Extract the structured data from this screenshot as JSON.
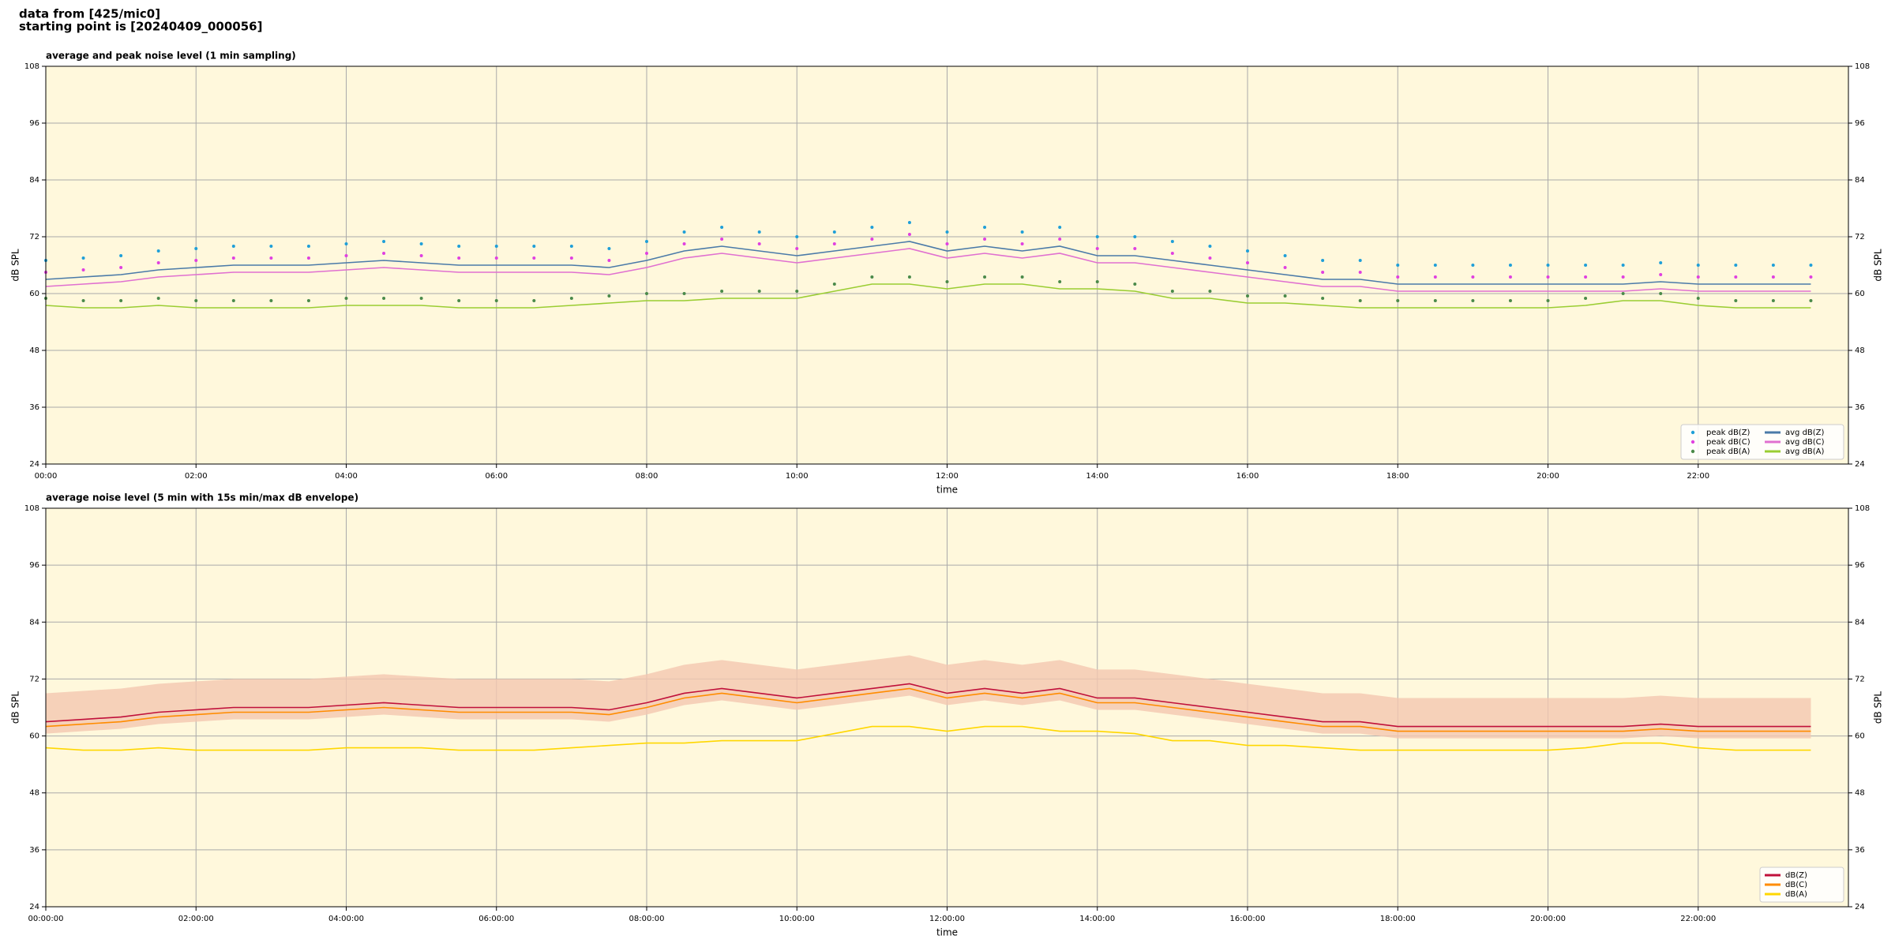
{
  "header": {
    "source": "data from [425/mic0]",
    "start": "starting point is [20240409_000056]"
  },
  "chart_data": [
    {
      "type": "line",
      "title": "average and peak noise level (1 min sampling)",
      "xlabel": "time",
      "ylabel": "dB SPL",
      "background": "#fff8dc",
      "grid": true,
      "legend": "lower right",
      "xlim": [
        0,
        24
      ],
      "xticks": [
        {
          "value": 0,
          "label": "00:00"
        },
        {
          "value": 2,
          "label": "02:00"
        },
        {
          "value": 4,
          "label": "04:00"
        },
        {
          "value": 6,
          "label": "06:00"
        },
        {
          "value": 8,
          "label": "08:00"
        },
        {
          "value": 10,
          "label": "10:00"
        },
        {
          "value": 12,
          "label": "12:00"
        },
        {
          "value": 14,
          "label": "14:00"
        },
        {
          "value": 16,
          "label": "16:00"
        },
        {
          "value": 18,
          "label": "18:00"
        },
        {
          "value": 20,
          "label": "20:00"
        },
        {
          "value": 22,
          "label": "22:00"
        }
      ],
      "ylim": [
        24,
        108
      ],
      "yticks": [
        24,
        36,
        48,
        60,
        72,
        84,
        96,
        108
      ],
      "x": [
        0,
        0.5,
        1,
        1.5,
        2,
        2.5,
        3,
        3.5,
        4,
        4.5,
        5,
        5.5,
        6,
        6.5,
        7,
        7.5,
        8,
        8.5,
        9,
        9.5,
        10,
        10.5,
        11,
        11.5,
        12,
        12.5,
        13,
        13.5,
        14,
        14.5,
        15,
        15.5,
        16,
        16.5,
        17,
        17.5,
        18,
        18.5,
        19,
        19.5,
        20,
        20.5,
        21,
        21.5,
        22,
        22.5,
        23,
        23.5
      ],
      "series": [
        {
          "name": "peak dB(Z)",
          "color": "#1f9fd8",
          "mode": "markers",
          "values": [
            67,
            67.5,
            68,
            69,
            69.5,
            70,
            70,
            70,
            70.5,
            71,
            70.5,
            70,
            70,
            70,
            70,
            69.5,
            71,
            73,
            74,
            73,
            72,
            73,
            74,
            75,
            73,
            74,
            73,
            74,
            72,
            72,
            71,
            70,
            69,
            68,
            67,
            67,
            66,
            66,
            66,
            66,
            66,
            66,
            66,
            66.5,
            66,
            66,
            66,
            66
          ]
        },
        {
          "name": "peak dB(C)",
          "color": "#e040e0",
          "mode": "markers",
          "values": [
            64.5,
            65,
            65.5,
            66.5,
            67,
            67.5,
            67.5,
            67.5,
            68,
            68.5,
            68,
            67.5,
            67.5,
            67.5,
            67.5,
            67,
            68.5,
            70.5,
            71.5,
            70.5,
            69.5,
            70.5,
            71.5,
            72.5,
            70.5,
            71.5,
            70.5,
            71.5,
            69.5,
            69.5,
            68.5,
            67.5,
            66.5,
            65.5,
            64.5,
            64.5,
            63.5,
            63.5,
            63.5,
            63.5,
            63.5,
            63.5,
            63.5,
            64,
            63.5,
            63.5,
            63.5,
            63.5
          ]
        },
        {
          "name": "peak dB(A)",
          "color": "#4a8a4a",
          "mode": "markers",
          "values": [
            59,
            58.5,
            58.5,
            59,
            58.5,
            58.5,
            58.5,
            58.5,
            59,
            59,
            59,
            58.5,
            58.5,
            58.5,
            59,
            59.5,
            60,
            60,
            60.5,
            60.5,
            60.5,
            62,
            63.5,
            63.5,
            62.5,
            63.5,
            63.5,
            62.5,
            62.5,
            62,
            60.5,
            60.5,
            59.5,
            59.5,
            59,
            58.5,
            58.5,
            58.5,
            58.5,
            58.5,
            58.5,
            59,
            60,
            60,
            59,
            58.5,
            58.5,
            58.5
          ]
        },
        {
          "name": "avg dB(Z)",
          "color": "#4a7aa8",
          "mode": "lines",
          "values": [
            63,
            63.5,
            64,
            65,
            65.5,
            66,
            66,
            66,
            66.5,
            67,
            66.5,
            66,
            66,
            66,
            66,
            65.5,
            67,
            69,
            70,
            69,
            68,
            69,
            70,
            71,
            69,
            70,
            69,
            70,
            68,
            68,
            67,
            66,
            65,
            64,
            63,
            63,
            62,
            62,
            62,
            62,
            62,
            62,
            62,
            62.5,
            62,
            62,
            62,
            62
          ]
        },
        {
          "name": "avg dB(C)",
          "color": "#e070d0",
          "mode": "lines",
          "values": [
            61.5,
            62,
            62.5,
            63.5,
            64,
            64.5,
            64.5,
            64.5,
            65,
            65.5,
            65,
            64.5,
            64.5,
            64.5,
            64.5,
            64,
            65.5,
            67.5,
            68.5,
            67.5,
            66.5,
            67.5,
            68.5,
            69.5,
            67.5,
            68.5,
            67.5,
            68.5,
            66.5,
            66.5,
            65.5,
            64.5,
            63.5,
            62.5,
            61.5,
            61.5,
            60.5,
            60.5,
            60.5,
            60.5,
            60.5,
            60.5,
            60.5,
            61,
            60.5,
            60.5,
            60.5,
            60.5
          ]
        },
        {
          "name": "avg dB(A)",
          "color": "#9acd32",
          "mode": "lines",
          "values": [
            57.5,
            57,
            57,
            57.5,
            57,
            57,
            57,
            57,
            57.5,
            57.5,
            57.5,
            57,
            57,
            57,
            57.5,
            58,
            58.5,
            58.5,
            59,
            59,
            59,
            60.5,
            62,
            62,
            61,
            62,
            62,
            61,
            61,
            60.5,
            59,
            59,
            58,
            58,
            57.5,
            57,
            57,
            57,
            57,
            57,
            57,
            57.5,
            58.5,
            58.5,
            57.5,
            57,
            57,
            57
          ]
        }
      ]
    },
    {
      "type": "line",
      "title": "average noise level (5 min with 15s min/max dB envelope)",
      "xlabel": "time",
      "ylabel": "dB SPL",
      "background": "#fff8dc",
      "grid": true,
      "legend": "lower right",
      "xlim": [
        0,
        24
      ],
      "xticks": [
        {
          "value": 0,
          "label": "00:00:00"
        },
        {
          "value": 2,
          "label": "02:00:00"
        },
        {
          "value": 4,
          "label": "04:00:00"
        },
        {
          "value": 6,
          "label": "06:00:00"
        },
        {
          "value": 8,
          "label": "08:00:00"
        },
        {
          "value": 10,
          "label": "10:00:00"
        },
        {
          "value": 12,
          "label": "12:00:00"
        },
        {
          "value": 14,
          "label": "14:00:00"
        },
        {
          "value": 16,
          "label": "16:00:00"
        },
        {
          "value": 18,
          "label": "18:00:00"
        },
        {
          "value": 20,
          "label": "20:00:00"
        },
        {
          "value": 22,
          "label": "22:00:00"
        }
      ],
      "ylim": [
        24,
        108
      ],
      "yticks": [
        24,
        36,
        48,
        60,
        72,
        84,
        96,
        108
      ],
      "x": [
        0,
        0.5,
        1,
        1.5,
        2,
        2.5,
        3,
        3.5,
        4,
        4.5,
        5,
        5.5,
        6,
        6.5,
        7,
        7.5,
        8,
        8.5,
        9,
        9.5,
        10,
        10.5,
        11,
        11.5,
        12,
        12.5,
        13,
        13.5,
        14,
        14.5,
        15,
        15.5,
        16,
        16.5,
        17,
        17.5,
        18,
        18.5,
        19,
        19.5,
        20,
        20.5,
        21,
        21.5,
        22,
        22.5,
        23,
        23.5
      ],
      "envelope": {
        "color": "#f4c7b0",
        "max": [
          69,
          69.5,
          70,
          71,
          71.5,
          72,
          72,
          72,
          72.5,
          73,
          72.5,
          72,
          72,
          72,
          72,
          71.5,
          73,
          75,
          76,
          75,
          74,
          75,
          76,
          77,
          75,
          76,
          75,
          76,
          74,
          74,
          73,
          72,
          71,
          70,
          69,
          69,
          68,
          68,
          68,
          68,
          68,
          68,
          68,
          68.5,
          68,
          68,
          68,
          68
        ],
        "min": [
          60.5,
          61,
          61.5,
          62.5,
          63,
          63.5,
          63.5,
          63.5,
          64,
          64.5,
          64,
          63.5,
          63.5,
          63.5,
          63.5,
          63,
          64.5,
          66.5,
          67.5,
          66.5,
          65.5,
          66.5,
          67.5,
          68.5,
          66.5,
          67.5,
          66.5,
          67.5,
          65.5,
          65.5,
          64.5,
          63.5,
          62.5,
          61.5,
          60.5,
          60.5,
          59.5,
          59.5,
          59.5,
          59.5,
          59.5,
          59.5,
          59.5,
          60,
          59.5,
          59.5,
          59.5,
          59.5
        ]
      },
      "series": [
        {
          "name": "dB(Z)",
          "color": "#c0103a",
          "mode": "lines",
          "values": [
            63,
            63.5,
            64,
            65,
            65.5,
            66,
            66,
            66,
            66.5,
            67,
            66.5,
            66,
            66,
            66,
            66,
            65.5,
            67,
            69,
            70,
            69,
            68,
            69,
            70,
            71,
            69,
            70,
            69,
            70,
            68,
            68,
            67,
            66,
            65,
            64,
            63,
            63,
            62,
            62,
            62,
            62,
            62,
            62,
            62,
            62.5,
            62,
            62,
            62,
            62
          ]
        },
        {
          "name": "dB(C)",
          "color": "#ff8c00",
          "mode": "lines",
          "values": [
            62,
            62.5,
            63,
            64,
            64.5,
            65,
            65,
            65,
            65.5,
            66,
            65.5,
            65,
            65,
            65,
            65,
            64.5,
            66,
            68,
            69,
            68,
            67,
            68,
            69,
            70,
            68,
            69,
            68,
            69,
            67,
            67,
            66,
            65,
            64,
            63,
            62,
            62,
            61,
            61,
            61,
            61,
            61,
            61,
            61,
            61.5,
            61,
            61,
            61,
            61
          ]
        },
        {
          "name": "dB(A)",
          "color": "#ffd700",
          "mode": "lines",
          "values": [
            57.5,
            57,
            57,
            57.5,
            57,
            57,
            57,
            57,
            57.5,
            57.5,
            57.5,
            57,
            57,
            57,
            57.5,
            58,
            58.5,
            58.5,
            59,
            59,
            59,
            60.5,
            62,
            62,
            61,
            62,
            62,
            61,
            61,
            60.5,
            59,
            59,
            58,
            58,
            57.5,
            57,
            57,
            57,
            57,
            57,
            57,
            57.5,
            58.5,
            58.5,
            57.5,
            57,
            57,
            57
          ]
        }
      ]
    }
  ]
}
